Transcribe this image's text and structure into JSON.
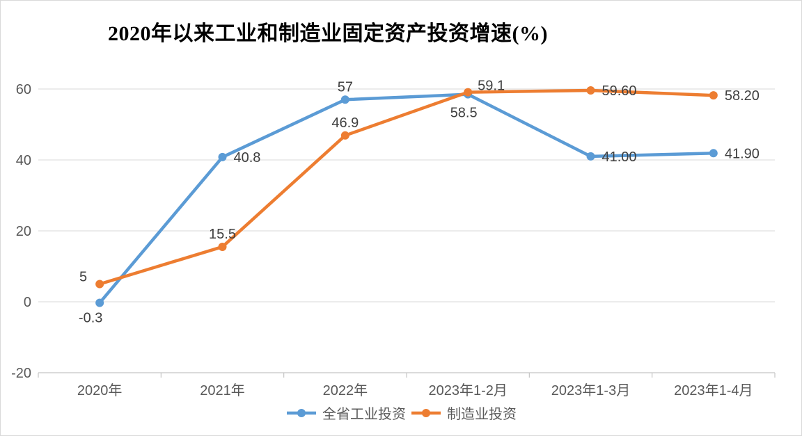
{
  "chart": {
    "title": "2020年以来工业和制造业固定资产投资增速(%)"
  },
  "chart_data": {
    "type": "line",
    "title": "2020年以来工业和制造业固定资产投资增速(%)",
    "categories": [
      "2020年",
      "2021年",
      "2022年",
      "2023年1-2月",
      "2023年1-3月",
      "2023年1-4月"
    ],
    "series": [
      {
        "name": "全省工业投资",
        "color": "#5B9BD5",
        "values": [
          -0.3,
          40.8,
          57,
          58.5,
          41.0,
          41.9
        ],
        "labels": [
          "-0.3",
          "40.8",
          "57",
          "58.5",
          "41.00",
          "41.90"
        ],
        "label_positions": [
          "below",
          "right",
          "above",
          "below-left",
          "right",
          "right"
        ]
      },
      {
        "name": "制造业投资",
        "color": "#ED7D31",
        "values": [
          5,
          15.5,
          46.9,
          59.1,
          59.6,
          58.2
        ],
        "labels": [
          "5",
          "15.5",
          "46.9",
          "59.1",
          "59.60",
          "58.20"
        ],
        "label_positions": [
          "left-above",
          "above",
          "above",
          "above-right",
          "right",
          "right"
        ]
      }
    ],
    "y_ticks": [
      -20,
      0,
      20,
      40,
      60
    ],
    "ylim": [
      -20,
      60
    ],
    "grid": "horizontal",
    "legend_position": "bottom-center",
    "colors": {
      "grid": "#D9D9D9",
      "axis_line": "#C5C5C5",
      "tick_label": "#595959",
      "data_label": "#3F3F3F",
      "border": "#D9D9D9",
      "background": "#FFFFFF"
    }
  }
}
